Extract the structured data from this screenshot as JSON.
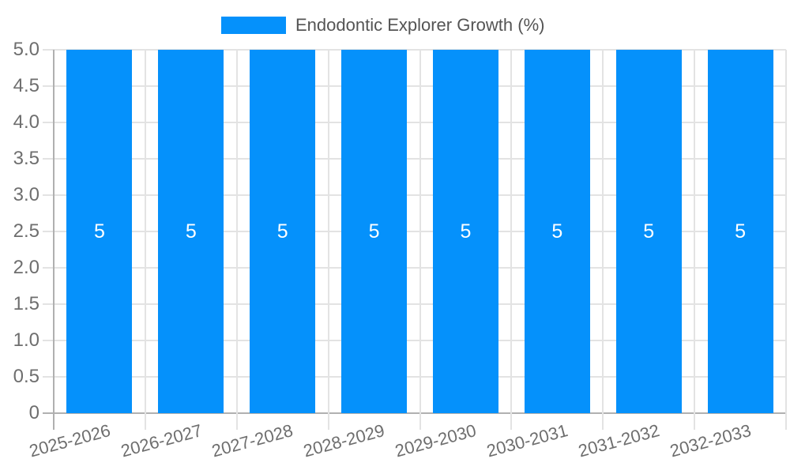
{
  "chart_data": {
    "type": "bar",
    "title": "Endodontic Explorer Growth (%)",
    "legend_position": "top",
    "categories": [
      "2025-2026",
      "2026-2027",
      "2027-2028",
      "2028-2029",
      "2029-2030",
      "2030-2031",
      "2031-2032",
      "2032-2033"
    ],
    "values": [
      5,
      5,
      5,
      5,
      5,
      5,
      5,
      5
    ],
    "bar_value_labels": [
      "5",
      "5",
      "5",
      "5",
      "5",
      "5",
      "5",
      "5"
    ],
    "xlabel": "",
    "ylabel": "",
    "ylim": [
      0,
      5
    ],
    "ytick_step": 0.5,
    "ytick_labels": [
      "0",
      "0.5",
      "1.0",
      "1.5",
      "2.0",
      "2.5",
      "3.0",
      "3.5",
      "4.0",
      "4.5",
      "5.0"
    ],
    "grid": "on",
    "colors": {
      "bar": "#0591fb",
      "bar_value_text": "#ffffff",
      "gridline": "#e3e3e3",
      "axis_line": "#b0b0b0",
      "tick_text": "#6e6e6e",
      "legend_text": "#545454"
    }
  }
}
